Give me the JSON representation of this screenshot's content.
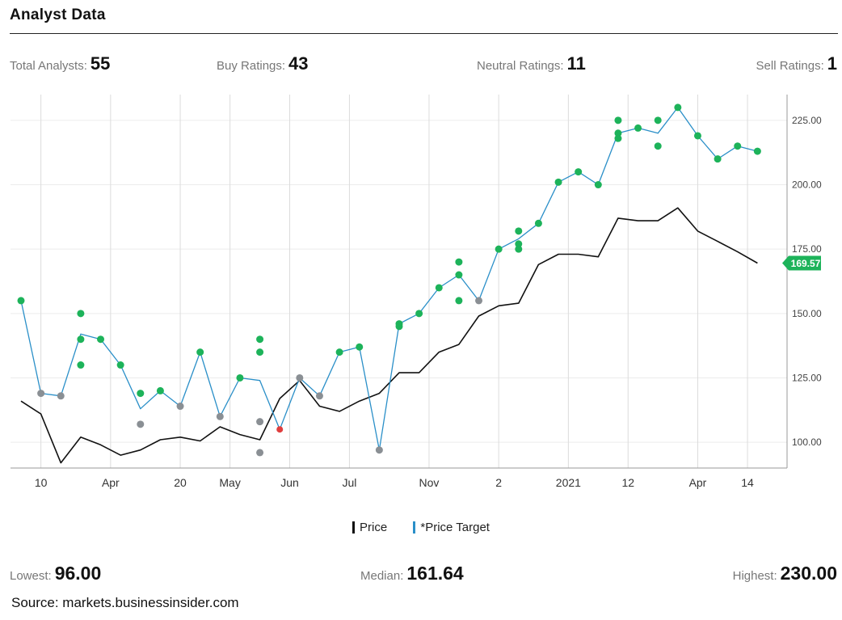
{
  "header": {
    "title": "Analyst Data"
  },
  "stats": {
    "total_label": "Total Analysts:",
    "total_value": "55",
    "buy_label": "Buy Ratings:",
    "buy_value": "43",
    "neutral_label": "Neutral Ratings:",
    "neutral_value": "11",
    "sell_label": "Sell Ratings:",
    "sell_value": "1"
  },
  "colors": {
    "price": "#111111",
    "target": "#2a8fc8",
    "buy": "#1db35a",
    "neutral": "#8a8f94",
    "sell": "#e03e3e",
    "badge": "#1db35a"
  },
  "chart_data": {
    "type": "line",
    "ylim": [
      90,
      235
    ],
    "x_range": [
      0,
      38
    ],
    "yticks": [
      100,
      125,
      150,
      175,
      200,
      225
    ],
    "ytick_labels": [
      "100.00",
      "125.00",
      "150.00",
      "175.00",
      "200.00",
      "225.00"
    ],
    "xticks": [
      {
        "x": 1,
        "label": "10"
      },
      {
        "x": 4.5,
        "label": "Apr"
      },
      {
        "x": 8,
        "label": "20"
      },
      {
        "x": 10.5,
        "label": "May"
      },
      {
        "x": 13.5,
        "label": "Jun"
      },
      {
        "x": 16.5,
        "label": "Jul"
      },
      {
        "x": 20.5,
        "label": "Nov"
      },
      {
        "x": 24,
        "label": "2"
      },
      {
        "x": 27.5,
        "label": "2021"
      },
      {
        "x": 30.5,
        "label": "12"
      },
      {
        "x": 34,
        "label": "Apr"
      },
      {
        "x": 36.5,
        "label": "14"
      }
    ],
    "series": [
      {
        "name": "Price",
        "key": "price",
        "points": [
          [
            0,
            116
          ],
          [
            1,
            111
          ],
          [
            2,
            92
          ],
          [
            3,
            102
          ],
          [
            4,
            99
          ],
          [
            5,
            95
          ],
          [
            6,
            97
          ],
          [
            7,
            101
          ],
          [
            8,
            102
          ],
          [
            9,
            100.5
          ],
          [
            10,
            106
          ],
          [
            11,
            103
          ],
          [
            12,
            101
          ],
          [
            13,
            117
          ],
          [
            14,
            124
          ],
          [
            15,
            114
          ],
          [
            16,
            112
          ],
          [
            17,
            116
          ],
          [
            18,
            119
          ],
          [
            19,
            127
          ],
          [
            20,
            127
          ],
          [
            21,
            135
          ],
          [
            22,
            138
          ],
          [
            23,
            149
          ],
          [
            24,
            153
          ],
          [
            25,
            154
          ],
          [
            26,
            169
          ],
          [
            27,
            173
          ],
          [
            28,
            173
          ],
          [
            29,
            172
          ],
          [
            30,
            187
          ],
          [
            31,
            186
          ],
          [
            32,
            186
          ],
          [
            33,
            191
          ],
          [
            34,
            182
          ],
          [
            35,
            178
          ],
          [
            36,
            174
          ],
          [
            37,
            169.57
          ]
        ]
      },
      {
        "name": "*Price Target",
        "key": "target",
        "points": [
          [
            0,
            155
          ],
          [
            1,
            119
          ],
          [
            2,
            118
          ],
          [
            3,
            142
          ],
          [
            4,
            140
          ],
          [
            5,
            130
          ],
          [
            6,
            113
          ],
          [
            7,
            120
          ],
          [
            8,
            114
          ],
          [
            9,
            135
          ],
          [
            10,
            110
          ],
          [
            11,
            125
          ],
          [
            12,
            124
          ],
          [
            13,
            105
          ],
          [
            14,
            125
          ],
          [
            15,
            118
          ],
          [
            16,
            135
          ],
          [
            17,
            137
          ],
          [
            18,
            97
          ],
          [
            19,
            146
          ],
          [
            20,
            150
          ],
          [
            21,
            160
          ],
          [
            22,
            165
          ],
          [
            23,
            155
          ],
          [
            24,
            175
          ],
          [
            25,
            179
          ],
          [
            26,
            185
          ],
          [
            27,
            201
          ],
          [
            28,
            205
          ],
          [
            29,
            200
          ],
          [
            30,
            220
          ],
          [
            31,
            222
          ],
          [
            32,
            220
          ],
          [
            33,
            230
          ],
          [
            34,
            219
          ],
          [
            35,
            210
          ],
          [
            36,
            215
          ],
          [
            37,
            213
          ]
        ]
      }
    ],
    "ratings": [
      {
        "x": 0,
        "y": 155,
        "r": "buy"
      },
      {
        "x": 1,
        "y": 119,
        "r": "neutral"
      },
      {
        "x": 2,
        "y": 118,
        "r": "neutral"
      },
      {
        "x": 3,
        "y": 150,
        "r": "buy"
      },
      {
        "x": 3,
        "y": 140,
        "r": "buy"
      },
      {
        "x": 3,
        "y": 130,
        "r": "buy"
      },
      {
        "x": 4,
        "y": 140,
        "r": "buy"
      },
      {
        "x": 5,
        "y": 130,
        "r": "buy"
      },
      {
        "x": 6,
        "y": 119,
        "r": "buy"
      },
      {
        "x": 6,
        "y": 107,
        "r": "neutral"
      },
      {
        "x": 7,
        "y": 120,
        "r": "buy"
      },
      {
        "x": 8,
        "y": 114,
        "r": "neutral"
      },
      {
        "x": 9,
        "y": 135,
        "r": "buy"
      },
      {
        "x": 10,
        "y": 110,
        "r": "neutral"
      },
      {
        "x": 11,
        "y": 125,
        "r": "buy"
      },
      {
        "x": 12,
        "y": 140,
        "r": "buy"
      },
      {
        "x": 12,
        "y": 135,
        "r": "buy"
      },
      {
        "x": 12,
        "y": 108,
        "r": "neutral"
      },
      {
        "x": 12,
        "y": 96,
        "r": "neutral"
      },
      {
        "x": 13,
        "y": 105,
        "r": "sell"
      },
      {
        "x": 14,
        "y": 125,
        "r": "neutral"
      },
      {
        "x": 15,
        "y": 118,
        "r": "neutral"
      },
      {
        "x": 16,
        "y": 135,
        "r": "buy"
      },
      {
        "x": 17,
        "y": 137,
        "r": "buy"
      },
      {
        "x": 18,
        "y": 97,
        "r": "neutral"
      },
      {
        "x": 19,
        "y": 146,
        "r": "buy"
      },
      {
        "x": 19,
        "y": 145,
        "r": "buy"
      },
      {
        "x": 20,
        "y": 150,
        "r": "buy"
      },
      {
        "x": 21,
        "y": 160,
        "r": "buy"
      },
      {
        "x": 22,
        "y": 170,
        "r": "buy"
      },
      {
        "x": 22,
        "y": 165,
        "r": "buy"
      },
      {
        "x": 22,
        "y": 155,
        "r": "buy"
      },
      {
        "x": 23,
        "y": 155,
        "r": "neutral"
      },
      {
        "x": 24,
        "y": 175,
        "r": "buy"
      },
      {
        "x": 25,
        "y": 182,
        "r": "buy"
      },
      {
        "x": 25,
        "y": 177,
        "r": "buy"
      },
      {
        "x": 25,
        "y": 175,
        "r": "buy"
      },
      {
        "x": 26,
        "y": 185,
        "r": "buy"
      },
      {
        "x": 27,
        "y": 201,
        "r": "buy"
      },
      {
        "x": 28,
        "y": 205,
        "r": "buy"
      },
      {
        "x": 29,
        "y": 200,
        "r": "buy"
      },
      {
        "x": 30,
        "y": 225,
        "r": "buy"
      },
      {
        "x": 30,
        "y": 220,
        "r": "buy"
      },
      {
        "x": 30,
        "y": 218,
        "r": "buy"
      },
      {
        "x": 31,
        "y": 222,
        "r": "buy"
      },
      {
        "x": 32,
        "y": 225,
        "r": "buy"
      },
      {
        "x": 32,
        "y": 215,
        "r": "buy"
      },
      {
        "x": 33,
        "y": 230,
        "r": "buy"
      },
      {
        "x": 34,
        "y": 219,
        "r": "buy"
      },
      {
        "x": 35,
        "y": 210,
        "r": "buy"
      },
      {
        "x": 36,
        "y": 215,
        "r": "buy"
      },
      {
        "x": 37,
        "y": 213,
        "r": "buy"
      }
    ],
    "current_price_label": "169.57",
    "current_price": 169.57
  },
  "legend": {
    "price_label": "Price",
    "target_label": "*Price Target"
  },
  "summary": {
    "lowest_label": "Lowest:",
    "lowest_value": "96.00",
    "median_label": "Median:",
    "median_value": "161.64",
    "highest_label": "Highest:",
    "highest_value": "230.00"
  },
  "source": "Source: markets.businessinsider.com"
}
